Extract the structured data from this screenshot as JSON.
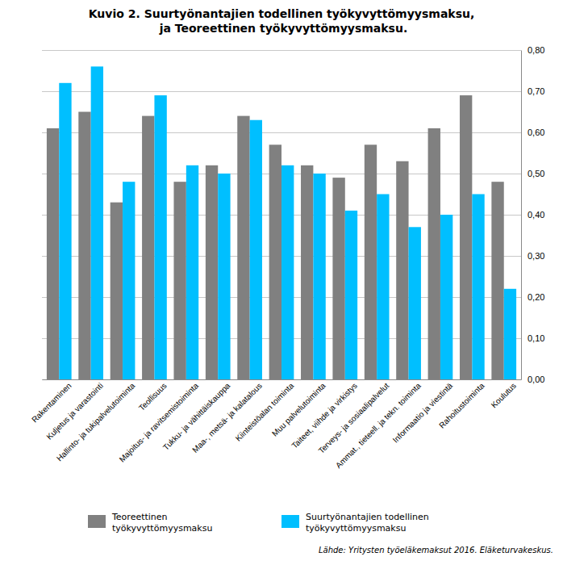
{
  "chart_data": {
    "type": "bar",
    "title": "Kuvio 2. Suurtyönantajien todellinen työkyvyttömyysmaksu,\n ja Teoreettinen työkyvyttömyysmaksu.",
    "categories": [
      "Rakentaminen",
      "Kuljetus ja varastointi",
      "Hallinto- ja tukipalvelutoiminta",
      "Teollisuus",
      "Majoitus- ja ravitsemistoiminta",
      "Tukku- ja vähittäiskauppa",
      "Maa-, metsä- ja kalatalous",
      "Kiinteistöalan toiminta",
      "Muu palvelutoiminta",
      "Taiteet, viihde ja virkistys",
      "Terveys- ja sosiaalipalvelut",
      "Ammat., tieteell. ja tekn. toiminta",
      "Informaatio ja viestintä",
      "Rahoitustoiminta",
      "Koulutus"
    ],
    "series": [
      {
        "name": "Teoreettinen\ntyökyvyttömyysmaksu",
        "color": "#808080",
        "values": [
          0.61,
          0.65,
          0.43,
          0.64,
          0.48,
          0.52,
          0.64,
          0.57,
          0.52,
          0.49,
          0.57,
          0.53,
          0.61,
          0.69,
          0.48
        ]
      },
      {
        "name": "Suurtyönantajien todellinen\ntyökyvyttömyysmaksu",
        "color": "#00BFFF",
        "values": [
          0.72,
          0.76,
          0.48,
          0.69,
          0.52,
          0.5,
          0.63,
          0.52,
          0.5,
          0.41,
          0.45,
          0.37,
          0.4,
          0.45,
          0.22
        ]
      }
    ],
    "ylim": [
      0,
      0.8
    ],
    "yticks": [
      {
        "value": 0.0,
        "label": "0,00"
      },
      {
        "value": 0.1,
        "label": "0,10"
      },
      {
        "value": 0.2,
        "label": "0,20"
      },
      {
        "value": 0.3,
        "label": "0,30"
      },
      {
        "value": 0.4,
        "label": "0,40"
      },
      {
        "value": 0.5,
        "label": "0,50"
      },
      {
        "value": 0.6,
        "label": "0,60"
      },
      {
        "value": 0.7,
        "label": "0,70"
      },
      {
        "value": 0.8,
        "label": "0,80"
      }
    ],
    "grid": true,
    "annotations": [
      "Lähde: Yritysten työeläkemaksut 2016. Eläketurvakeskus."
    ]
  }
}
